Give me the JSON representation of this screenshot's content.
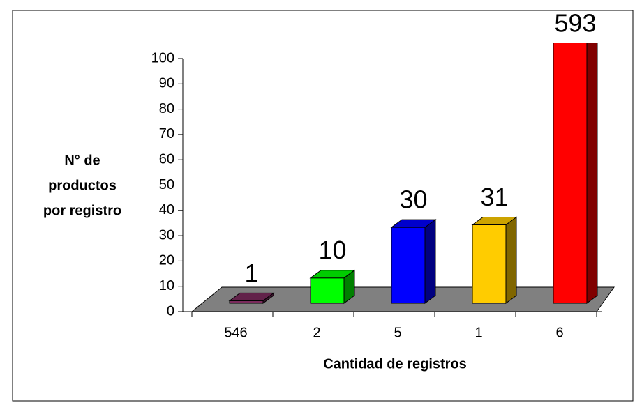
{
  "chart_data": {
    "type": "bar3d",
    "ylabel": [
      "N° de",
      "productos",
      "por registro"
    ],
    "xlabel": "Cantidad de registros",
    "categories": [
      "546",
      "2",
      "5",
      "1",
      "6"
    ],
    "values": [
      1,
      10,
      30,
      31,
      593
    ],
    "colors": [
      "#7a2a5c",
      "#00ff00",
      "#0000ff",
      "#ffcc00",
      "#ff0000"
    ],
    "ylim": [
      0,
      100
    ],
    "yticks": [
      0,
      10,
      20,
      30,
      40,
      50,
      60,
      70,
      80,
      90,
      100
    ]
  }
}
